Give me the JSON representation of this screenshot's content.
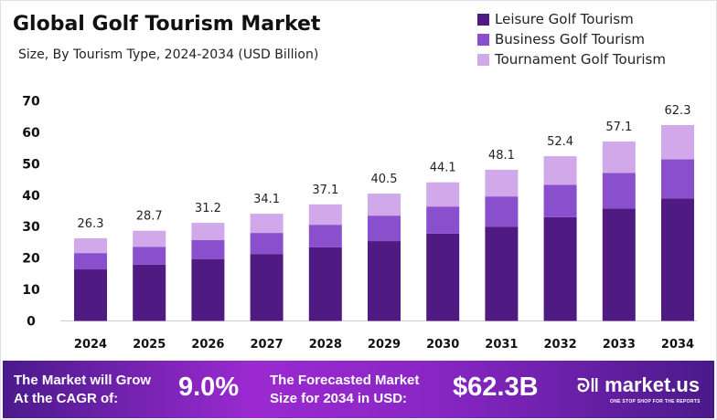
{
  "chart_data": {
    "type": "bar",
    "stacked": true,
    "title": "Global Golf Tourism Market",
    "subtitle": "Size, By Tourism Type, 2024-2034 (USD Billion)",
    "categories": [
      "2024",
      "2025",
      "2026",
      "2027",
      "2028",
      "2029",
      "2030",
      "2031",
      "2032",
      "2033",
      "2034"
    ],
    "series": [
      {
        "name": "Leisure Golf Tourism",
        "color": "#4f1a82",
        "values": [
          16.4,
          17.9,
          19.6,
          21.3,
          23.4,
          25.4,
          27.8,
          30.0,
          33.0,
          35.8,
          39.0
        ]
      },
      {
        "name": "Business Golf Tourism",
        "color": "#8a4fcc",
        "values": [
          5.2,
          5.7,
          6.1,
          6.7,
          7.2,
          8.1,
          8.6,
          9.6,
          10.3,
          11.3,
          12.4
        ]
      },
      {
        "name": "Tournament Golf Tourism",
        "color": "#d1a8ea",
        "values": [
          4.7,
          5.1,
          5.5,
          6.1,
          6.5,
          7.0,
          7.7,
          8.5,
          9.1,
          10.0,
          10.9
        ]
      }
    ],
    "totals": [
      "26.3",
      "28.7",
      "31.2",
      "34.1",
      "37.1",
      "40.5",
      "44.1",
      "48.1",
      "52.4",
      "57.1",
      "62.3"
    ],
    "ylim": [
      0,
      70
    ],
    "yticks": [
      "0",
      "10",
      "20",
      "30",
      "40",
      "50",
      "60",
      "70"
    ],
    "grid": false,
    "legend": "top-right"
  },
  "banner": {
    "cagr_label_1": "The Market will Grow",
    "cagr_label_2": "At the CAGR of:",
    "cagr_value": "9.0%",
    "forecast_label_1": "The Forecasted Market",
    "forecast_label_2": "Size for 2034 in USD:",
    "forecast_value": "$62.3B",
    "brand": "market.us",
    "brand_tagline": "ONE STOP SHOP FOR THE REPORTS"
  }
}
